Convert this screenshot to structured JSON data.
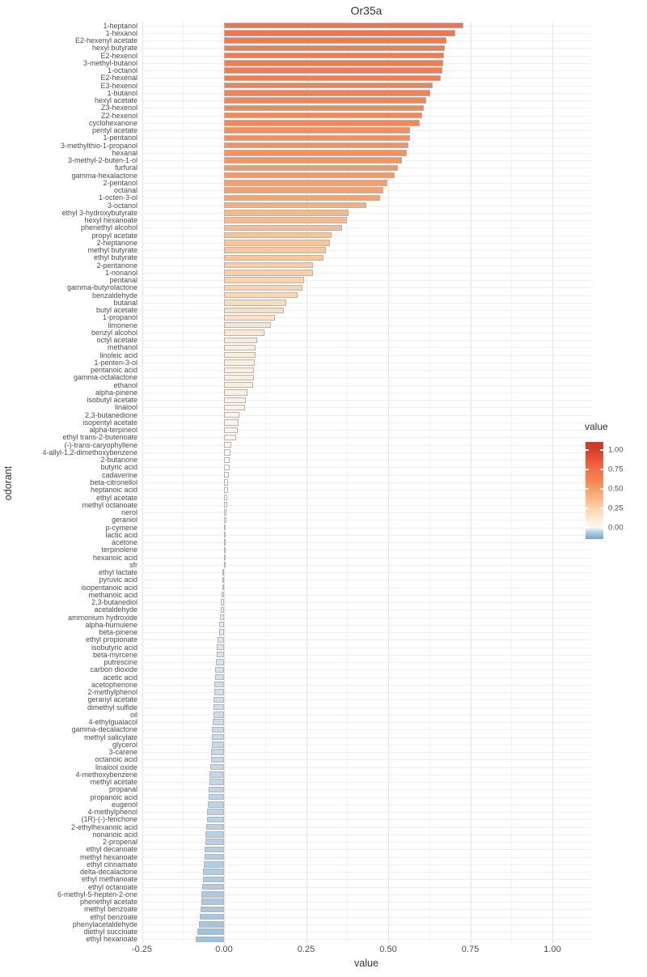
{
  "chart_data": {
    "type": "bar",
    "orientation": "horizontal",
    "title": "Or35a",
    "xlabel": "value",
    "ylabel": "odorant",
    "xlim": [
      -0.25,
      1.0
    ],
    "grid": true,
    "x_ticks": [
      -0.25,
      0,
      0.25,
      0.5,
      0.75,
      1.0
    ],
    "x_tick_labels": [
      "-0.25",
      "0.00",
      "0.25",
      "0.50",
      "0.75",
      "1.00"
    ],
    "legend": {
      "title": "value",
      "position": "right",
      "tick_labels": [
        "1.00",
        "0.75",
        "0.50",
        "0.25",
        "0.00"
      ],
      "tick_values": [
        1.0,
        0.75,
        0.5,
        0.25,
        0.0
      ]
    },
    "colors": {
      "high": "#ca3626",
      "mid": "#fdfaf6",
      "low": "#6da6cd",
      "bar_border": "#b4b4b4"
    },
    "categories": [
      "1-heptanol",
      "1-hexanol",
      "E2-hexenyl acetate",
      "hexyl butyrate",
      "E2-hexenol",
      "3-methyl-butanol",
      "1-octanol",
      "E2-hexenal",
      "E3-hexenol",
      "1-butanol",
      "hexyl acetate",
      "Z3-hexenol",
      "Z2-hexenol",
      "cyclohexanone",
      "pentyl acetate",
      "1-pentanol",
      "3-methylthio-1-propanol",
      "hexanal",
      "3-methyl-2-buten-1-ol",
      "furfural",
      "gamma-hexalactone",
      "2-pentanol",
      "octanal",
      "1-octen-3-ol",
      "3-octanol",
      "ethyl 3-hydroxybutyrate",
      "hexyl hexanoate",
      "phenethyl alcohol",
      "propyl acetate",
      "2-heptanone",
      "methyl butyrate",
      "ethyl butyrate",
      "2-pentanone",
      "1-nonanol",
      "pentanal",
      "gamma-butyrolactone",
      "benzaldehyde",
      "butanal",
      "butyl acetate",
      "1-propanol",
      "limonene",
      "benzyl alcohol",
      "octyl acetate",
      "methanol",
      "linoleic acid",
      "1-penten-3-ol",
      "pentanoic acid",
      "gamma-octalactone",
      "ethanol",
      "alpha-pinene",
      "isobutyl acetate",
      "linalool",
      "2,3-butanedione",
      "isopentyl acetate",
      "alpha-terpineol",
      "ethyl trans-2-butenoate",
      "(-)-trans-caryophyllene",
      "4-allyl-1,2-dimethoxybenzene",
      "2-butanone",
      "butyric acid",
      "cadaverine",
      "beta-citronellol",
      "heptanoic acid",
      "ethyl acetate",
      "methyl octanoate",
      "nerol",
      "geraniol",
      "p-cymene",
      "lactic acid",
      "acetone",
      "terpinolene",
      "hexanoic acid",
      "sfr",
      "ethyl lactate",
      "pyruvic acid",
      "isopentanoic acid",
      "methanoic acid",
      "2,3-butanediol",
      "acetaldehyde",
      "ammonium hydroxide",
      "alpha-humulene",
      "beta-pinene",
      "ethyl propionate",
      "isobutyric acid",
      "beta-myrcene",
      "putrescine",
      "carbon dioxide",
      "acetic acid",
      "acetophenone",
      "2-methylphenol",
      "geranyl acetate",
      "dimethyl sulfide",
      "oil",
      "4-ethylguaiacol",
      "gamma-decalactone",
      "methyl salicylate",
      "glycerol",
      "3-carene",
      "octanoic acid",
      "linalool oxide",
      "4-methoxybenzene",
      "methyl acetate",
      "propanal",
      "propanoic acid",
      "eugenol",
      "4-methylphenol",
      "(1R)-(-)-fenchone",
      "2-ethylhexanoic acid",
      "nonanoic acid",
      "2-propenal",
      "ethyl decanoate",
      "methyl hexanoate",
      "ethyl cinnamate",
      "delta-decalactone",
      "ethyl methanoate",
      "ethyl octanoate",
      "6-methyl-5-hepten-2-one",
      "phenethyl acetate",
      "methyl benzoate",
      "ethyl benzoate",
      "phenylacetaldehyde",
      "diethyl succinate",
      "ethyl hexanoate"
    ],
    "values": [
      0.73,
      0.705,
      0.678,
      0.672,
      0.67,
      0.667,
      0.665,
      0.66,
      0.635,
      0.628,
      0.616,
      0.608,
      0.603,
      0.596,
      0.567,
      0.566,
      0.561,
      0.556,
      0.542,
      0.53,
      0.52,
      0.497,
      0.485,
      0.475,
      0.434,
      0.379,
      0.375,
      0.359,
      0.328,
      0.322,
      0.311,
      0.303,
      0.272,
      0.27,
      0.244,
      0.239,
      0.225,
      0.19,
      0.182,
      0.155,
      0.143,
      0.123,
      0.1,
      0.097,
      0.096,
      0.093,
      0.091,
      0.09,
      0.089,
      0.071,
      0.067,
      0.064,
      0.047,
      0.045,
      0.043,
      0.036,
      0.022,
      0.02,
      0.018,
      0.017,
      0.015,
      0.013,
      0.012,
      0.01,
      0.009,
      0.008,
      0.007,
      0.006,
      0.005,
      0.004,
      0.003,
      0.002,
      0.001,
      -0.004,
      -0.005,
      -0.006,
      -0.008,
      -0.01,
      -0.011,
      -0.013,
      -0.014,
      -0.016,
      -0.02,
      -0.021,
      -0.023,
      -0.024,
      -0.026,
      -0.028,
      -0.029,
      -0.03,
      -0.031,
      -0.032,
      -0.033,
      -0.035,
      -0.036,
      -0.037,
      -0.038,
      -0.039,
      -0.04,
      -0.042,
      -0.044,
      -0.045,
      -0.046,
      -0.048,
      -0.049,
      -0.051,
      -0.052,
      -0.054,
      -0.056,
      -0.057,
      -0.059,
      -0.06,
      -0.062,
      -0.063,
      -0.064,
      -0.066,
      -0.068,
      -0.07,
      -0.072,
      -0.074,
      -0.077,
      -0.082,
      -0.085
    ]
  }
}
